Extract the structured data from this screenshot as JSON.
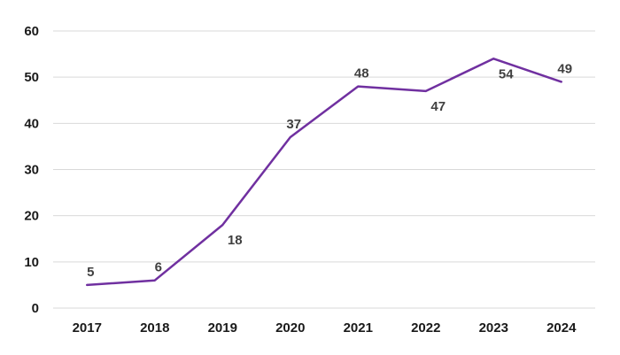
{
  "chart_data": {
    "type": "line",
    "title": "",
    "xlabel": "",
    "ylabel": "",
    "x": [
      "2017",
      "2018",
      "2019",
      "2020",
      "2021",
      "2022",
      "2023",
      "2024"
    ],
    "series": [
      {
        "values": [
          5,
          6,
          18,
          37,
          48,
          47,
          54,
          49
        ],
        "color": "#7030a0",
        "label_positions": [
          "above",
          "above",
          "below",
          "above",
          "above",
          "below",
          "below",
          "above"
        ]
      }
    ],
    "ylim": [
      0,
      60
    ],
    "yticks": [
      0,
      10,
      20,
      30,
      40,
      50,
      60
    ],
    "grid": true,
    "legend": "none",
    "gridline_color": "#d9d9d9"
  }
}
